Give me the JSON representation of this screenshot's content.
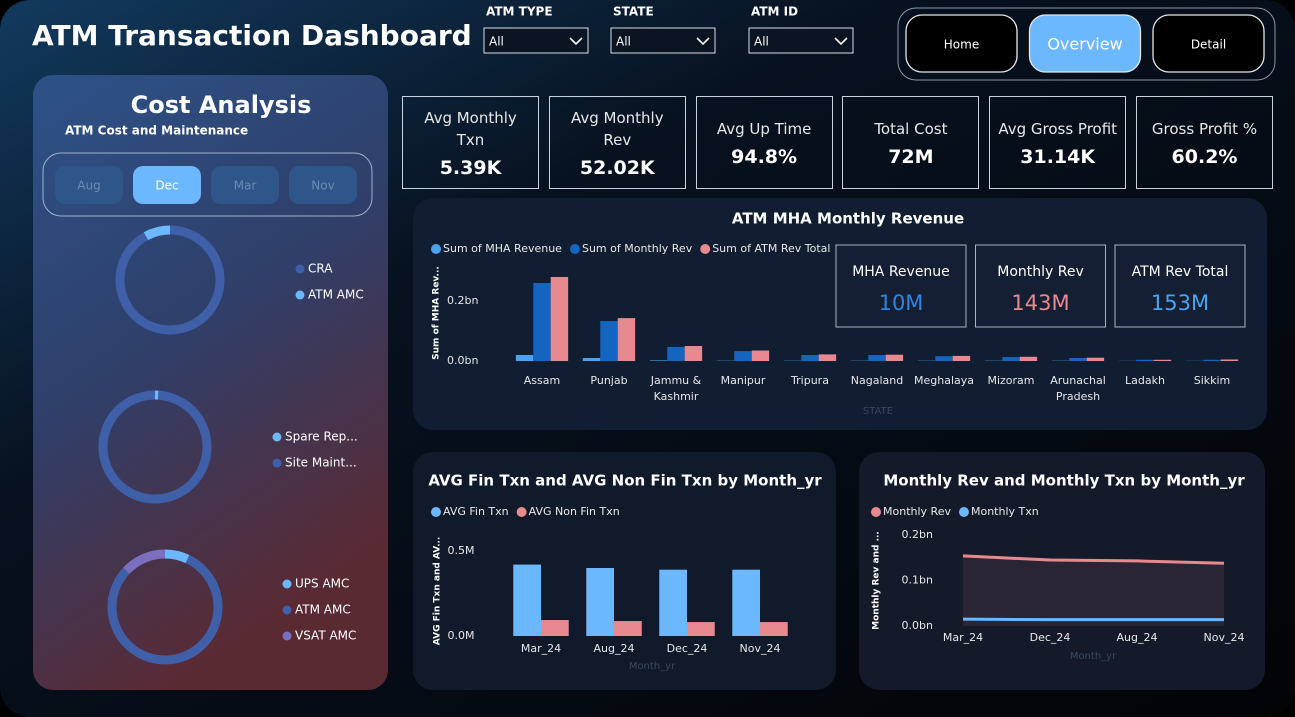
{
  "header": {
    "title": "ATM Transaction Dashboard"
  },
  "filters": [
    {
      "label": "ATM TYPE",
      "value": "All"
    },
    {
      "label": "STATE",
      "value": "All"
    },
    {
      "label": "ATM ID",
      "value": "All"
    }
  ],
  "nav": {
    "buttons": [
      "Home",
      "Overview",
      "Detail"
    ],
    "selected": 1
  },
  "cost_analysis": {
    "title": "Cost Analysis",
    "subtitle": "ATM Cost and Maintenance",
    "months": [
      "Aug",
      "Dec",
      "Mar",
      "Nov"
    ],
    "selected": 1
  },
  "kpis": [
    {
      "label": "Avg Monthly Txn",
      "value": "5.39K"
    },
    {
      "label": "Avg Monthly Rev",
      "value": "52.02K"
    },
    {
      "label": "Avg Up Time",
      "value": "94.8%"
    },
    {
      "label": "Total Cost",
      "value": "72M"
    },
    {
      "label": "Avg Gross Profit",
      "value": "31.14K"
    },
    {
      "label": "Gross Profit %",
      "value": "60.2%"
    }
  ],
  "chart_data": [
    {
      "type": "donut",
      "categories": [
        "CRA",
        "ATM AMC"
      ],
      "values": [
        92,
        8
      ],
      "colors": [
        "#3f5fa8",
        "#6cb8ff"
      ]
    },
    {
      "type": "donut",
      "categories": [
        "Spare Rep...",
        "Site Maint..."
      ],
      "values": [
        1,
        99
      ],
      "colors": [
        "#6cb8ff",
        "#3f5fa8"
      ]
    },
    {
      "type": "donut",
      "categories": [
        "UPS AMC",
        "ATM AMC",
        "VSAT AMC"
      ],
      "values": [
        7,
        80,
        13
      ],
      "colors": [
        "#6cb8ff",
        "#3f5fa8",
        "#7b6fc0"
      ]
    },
    {
      "type": "bar",
      "title": "ATM MHA Monthly Revenue",
      "y_label": "Sum of MHA Rev...",
      "x_label": "STATE",
      "categories": [
        "Assam",
        "Punjab",
        "Jammu & Kashmir",
        "Manipur",
        "Tripura",
        "Nagaland",
        "Meghalaya",
        "Mizoram",
        "Arunachal Pradesh",
        "Ladakh",
        "Sikkim"
      ],
      "series": [
        {
          "name": "Sum of MHA Revenue",
          "color": "#4aa3f0",
          "values": [
            0.02,
            0.01,
            0.002,
            0.001,
            0.001,
            0.001,
            0.001,
            0.001,
            0.001,
            0.0005,
            0.0005
          ]
        },
        {
          "name": "Sum of Monthly Rev",
          "color": "#1565c0",
          "values": [
            0.26,
            0.133,
            0.047,
            0.033,
            0.02,
            0.02,
            0.016,
            0.013,
            0.01,
            0.004,
            0.004
          ]
        },
        {
          "name": "Sum of ATM Rev Total",
          "color": "#e8898f",
          "values": [
            0.28,
            0.143,
            0.05,
            0.035,
            0.022,
            0.021,
            0.017,
            0.014,
            0.011,
            0.004,
            0.005
          ]
        }
      ],
      "ylim": [
        0,
        0.32
      ],
      "yticks": [
        {
          "value": 0,
          "label": "0.0bn"
        },
        {
          "value": 0.2,
          "label": "0.2bn"
        }
      ],
      "grid": false,
      "cards": [
        {
          "label": "MHA Revenue",
          "value": "10M",
          "color": "#2f86e0"
        },
        {
          "label": "Monthly Rev",
          "value": "143M",
          "color": "#e8898f"
        },
        {
          "label": "ATM Rev Total",
          "value": "153M",
          "color": "#4aa3f0"
        }
      ]
    },
    {
      "type": "bar",
      "title": "AVG Fin Txn and AVG Non Fin Txn by Month_yr",
      "y_label": "AVG Fin Txn and AV...",
      "x_label": "Month_yr",
      "categories": [
        "Mar_24",
        "Aug_24",
        "Dec_24",
        "Nov_24"
      ],
      "series": [
        {
          "name": "AVG Fin Txn",
          "color": "#6cb8ff",
          "values": [
            0.42,
            0.4,
            0.39,
            0.39
          ]
        },
        {
          "name": "AVG Non Fin Txn",
          "color": "#e8898f",
          "values": [
            0.094,
            0.088,
            0.082,
            0.082
          ]
        }
      ],
      "ylim": [
        0,
        0.53
      ],
      "yticks": [
        {
          "value": 0,
          "label": "0.0M"
        },
        {
          "value": 0.5,
          "label": "0.5M"
        }
      ],
      "grid": false
    },
    {
      "type": "line",
      "title": "Monthly Rev and Monthly Txn by Month_yr",
      "y_label": "Monthly Rev and ...",
      "x_label": "Month_yr",
      "categories": [
        "Mar_24",
        "Dec_24",
        "Aug_24",
        "Nov_24"
      ],
      "series": [
        {
          "name": "Monthly Rev",
          "color": "#e8898f",
          "values": [
            0.154,
            0.145,
            0.143,
            0.138
          ]
        },
        {
          "name": "Monthly Txn",
          "color": "#6cb8ff",
          "values": [
            0.015,
            0.014,
            0.014,
            0.014
          ]
        }
      ],
      "ylim": [
        0,
        0.2
      ],
      "yticks": [
        {
          "value": 0,
          "label": "0.0bn"
        },
        {
          "value": 0.1,
          "label": "0.1bn"
        },
        {
          "value": 0.2,
          "label": "0.2bn"
        }
      ],
      "grid": false
    }
  ]
}
